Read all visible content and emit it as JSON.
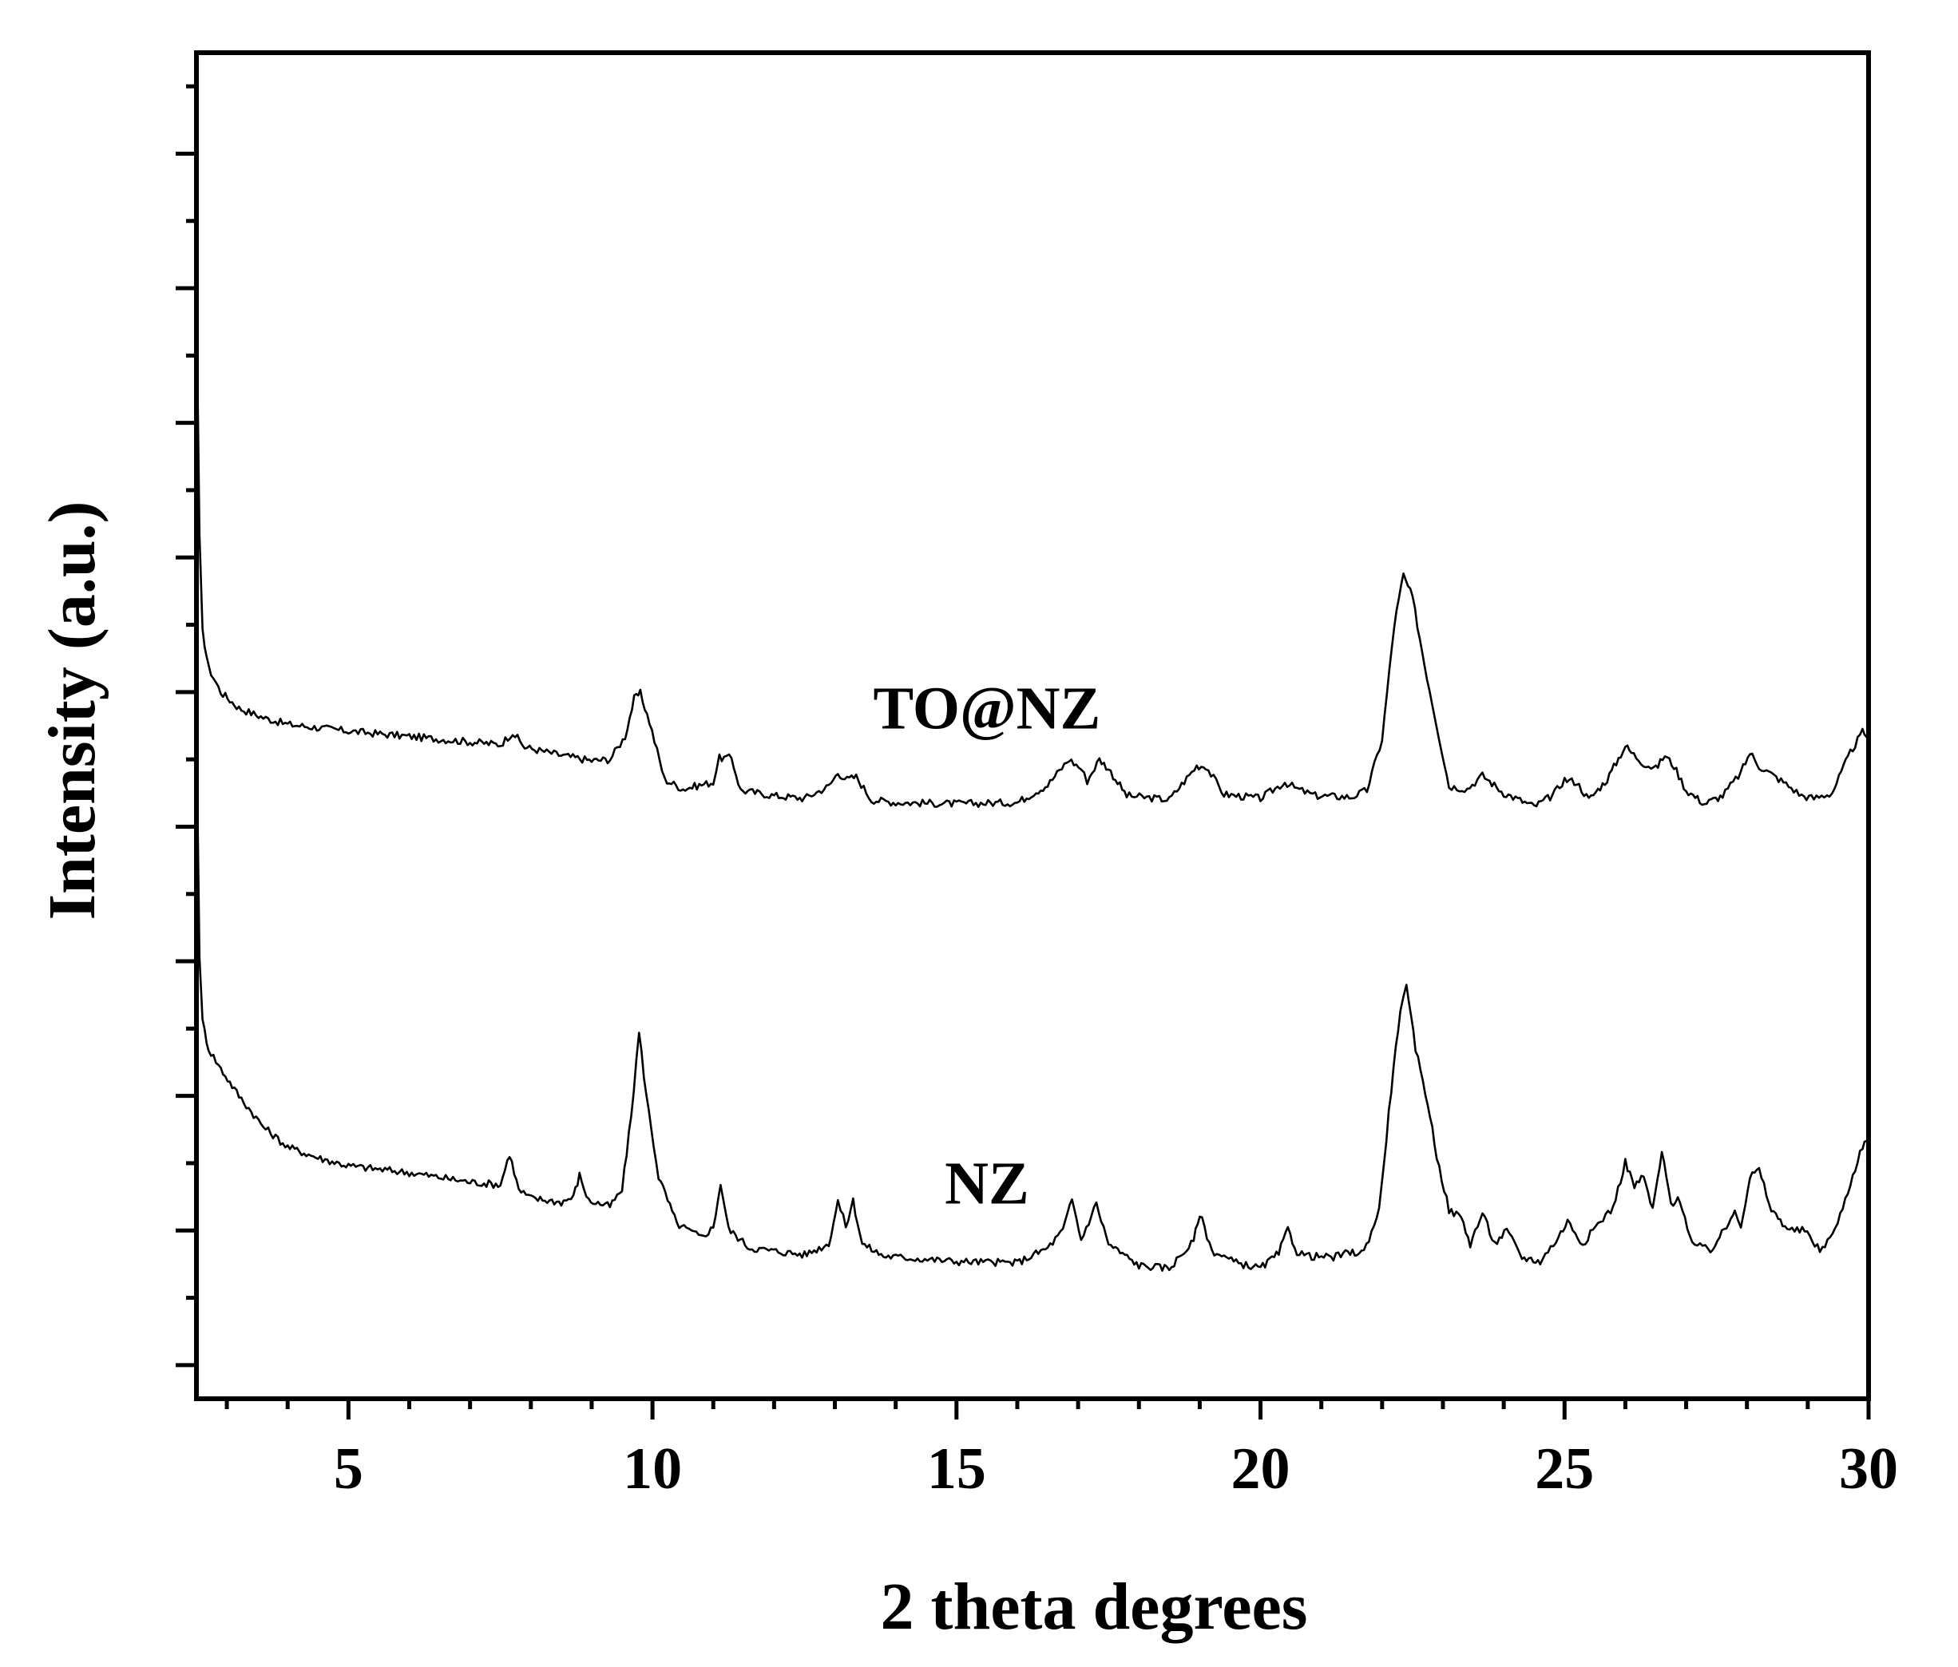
{
  "chart_data": {
    "type": "line",
    "xlabel": "2 theta degrees",
    "ylabel": "Intensity (a.u.)",
    "xlim": [
      2.5,
      30
    ],
    "ylim": [
      0,
      100
    ],
    "x_ticks": [
      "5",
      "10",
      "15",
      "20",
      "25",
      "30"
    ],
    "x_tick_values": [
      5,
      10,
      15,
      20,
      25,
      30
    ],
    "y_tick_labels_shown": false,
    "grid": false,
    "legend": "none",
    "series": [
      {
        "name": "TO@NZ",
        "label_position": [
          15.5,
          49.8
        ],
        "points": [
          [
            2.5,
            82
          ],
          [
            2.55,
            64
          ],
          [
            2.6,
            57
          ],
          [
            2.7,
            54.3
          ],
          [
            2.9,
            52.5
          ],
          [
            3.2,
            51.3
          ],
          [
            3.6,
            50.6
          ],
          [
            4.0,
            50.1
          ],
          [
            5.0,
            49.6
          ],
          [
            6.0,
            49.2
          ],
          [
            7.0,
            48.8
          ],
          [
            7.5,
            48.6
          ],
          [
            7.7,
            49.5
          ],
          [
            7.9,
            48.4
          ],
          [
            8.5,
            47.8
          ],
          [
            9.0,
            47.4
          ],
          [
            9.3,
            47.5
          ],
          [
            9.55,
            49.2
          ],
          [
            9.7,
            52.0
          ],
          [
            9.8,
            52.4
          ],
          [
            9.95,
            50.3
          ],
          [
            10.2,
            46.0
          ],
          [
            10.5,
            45.3
          ],
          [
            11.0,
            45.8
          ],
          [
            11.1,
            47.6
          ],
          [
            11.3,
            47.6
          ],
          [
            11.45,
            45.2
          ],
          [
            12.0,
            44.8
          ],
          [
            12.5,
            44.6
          ],
          [
            12.9,
            45.5
          ],
          [
            13.05,
            46.5
          ],
          [
            13.2,
            46.0
          ],
          [
            13.35,
            46.2
          ],
          [
            13.6,
            44.5
          ],
          [
            14.0,
            44.3
          ],
          [
            15.0,
            44.2
          ],
          [
            16.0,
            44.3
          ],
          [
            16.5,
            45.6
          ],
          [
            16.85,
            47.5
          ],
          [
            17.05,
            46.8
          ],
          [
            17.15,
            45.9
          ],
          [
            17.35,
            47.5
          ],
          [
            17.5,
            46.8
          ],
          [
            17.8,
            44.8
          ],
          [
            18.5,
            44.5
          ],
          [
            18.95,
            47.0
          ],
          [
            19.1,
            47.0
          ],
          [
            19.4,
            44.9
          ],
          [
            20.0,
            44.6
          ],
          [
            20.4,
            45.8
          ],
          [
            20.6,
            45.3
          ],
          [
            20.9,
            44.8
          ],
          [
            21.5,
            44.7
          ],
          [
            21.75,
            45.2
          ],
          [
            22.0,
            49.0
          ],
          [
            22.2,
            57.5
          ],
          [
            22.35,
            61.2
          ],
          [
            22.5,
            59.5
          ],
          [
            22.7,
            54.5
          ],
          [
            22.9,
            50.0
          ],
          [
            23.1,
            45.5
          ],
          [
            23.4,
            45.3
          ],
          [
            23.65,
            46.3
          ],
          [
            24.0,
            45.0
          ],
          [
            24.5,
            44.0
          ],
          [
            24.8,
            44.8
          ],
          [
            25.0,
            46.0
          ],
          [
            25.2,
            45.8
          ],
          [
            25.4,
            44.5
          ],
          [
            25.7,
            46.0
          ],
          [
            26.0,
            48.5
          ],
          [
            26.1,
            48.0
          ],
          [
            26.3,
            47.2
          ],
          [
            26.5,
            46.8
          ],
          [
            26.65,
            47.8
          ],
          [
            26.8,
            47.0
          ],
          [
            27.0,
            45.2
          ],
          [
            27.3,
            44.2
          ],
          [
            27.6,
            44.8
          ],
          [
            27.9,
            46.5
          ],
          [
            28.05,
            48.0
          ],
          [
            28.2,
            47.0
          ],
          [
            28.6,
            45.8
          ],
          [
            28.9,
            44.8
          ],
          [
            29.1,
            44.6
          ],
          [
            29.4,
            45.0
          ],
          [
            29.7,
            48.0
          ],
          [
            29.9,
            49.5
          ],
          [
            30.0,
            49.2
          ]
        ]
      },
      {
        "name": "NZ",
        "label_position": [
          15.5,
          14.5
        ],
        "points": [
          [
            2.5,
            50
          ],
          [
            2.55,
            33
          ],
          [
            2.6,
            28
          ],
          [
            2.7,
            26
          ],
          [
            2.9,
            24.5
          ],
          [
            3.2,
            22.5
          ],
          [
            3.6,
            20.2
          ],
          [
            4.0,
            18.7
          ],
          [
            4.5,
            17.9
          ],
          [
            5.0,
            17.3
          ],
          [
            6.0,
            16.8
          ],
          [
            7.0,
            16.1
          ],
          [
            7.5,
            15.9
          ],
          [
            7.65,
            18.2
          ],
          [
            7.8,
            15.5
          ],
          [
            8.0,
            14.9
          ],
          [
            8.5,
            14.6
          ],
          [
            8.7,
            15.0
          ],
          [
            8.8,
            16.6
          ],
          [
            8.95,
            14.7
          ],
          [
            9.3,
            14.3
          ],
          [
            9.5,
            15.5
          ],
          [
            9.65,
            21.0
          ],
          [
            9.78,
            27.2
          ],
          [
            9.9,
            22.5
          ],
          [
            10.1,
            16.5
          ],
          [
            10.4,
            13.0
          ],
          [
            10.8,
            12.0
          ],
          [
            11.0,
            12.7
          ],
          [
            11.12,
            16.0
          ],
          [
            11.25,
            12.6
          ],
          [
            11.6,
            11.2
          ],
          [
            12.5,
            10.7
          ],
          [
            12.9,
            11.5
          ],
          [
            13.05,
            14.7
          ],
          [
            13.18,
            12.8
          ],
          [
            13.3,
            14.7
          ],
          [
            13.45,
            11.5
          ],
          [
            13.8,
            10.6
          ],
          [
            15.0,
            10.2
          ],
          [
            16.0,
            10.1
          ],
          [
            16.5,
            11.2
          ],
          [
            16.75,
            12.5
          ],
          [
            16.9,
            14.8
          ],
          [
            17.05,
            11.8
          ],
          [
            17.3,
            14.5
          ],
          [
            17.5,
            11.5
          ],
          [
            18.0,
            9.9
          ],
          [
            18.5,
            9.7
          ],
          [
            18.9,
            11.7
          ],
          [
            19.0,
            13.8
          ],
          [
            19.2,
            11.0
          ],
          [
            19.6,
            10.1
          ],
          [
            20.0,
            9.7
          ],
          [
            20.3,
            10.8
          ],
          [
            20.45,
            12.6
          ],
          [
            20.6,
            10.9
          ],
          [
            20.8,
            10.6
          ],
          [
            21.2,
            10.5
          ],
          [
            21.4,
            10.8
          ],
          [
            21.7,
            10.9
          ],
          [
            21.95,
            14.0
          ],
          [
            22.15,
            23.0
          ],
          [
            22.3,
            29.0
          ],
          [
            22.4,
            30.5
          ],
          [
            22.55,
            26.0
          ],
          [
            22.75,
            22.0
          ],
          [
            22.9,
            18.0
          ],
          [
            23.1,
            14.0
          ],
          [
            23.3,
            13.5
          ],
          [
            23.45,
            11.5
          ],
          [
            23.65,
            13.8
          ],
          [
            23.85,
            11.5
          ],
          [
            24.05,
            12.5
          ],
          [
            24.3,
            10.5
          ],
          [
            24.6,
            10.2
          ],
          [
            24.9,
            12.0
          ],
          [
            25.05,
            13.2
          ],
          [
            25.3,
            11.5
          ],
          [
            25.55,
            13.0
          ],
          [
            25.8,
            14.2
          ],
          [
            26.0,
            17.6
          ],
          [
            26.15,
            15.8
          ],
          [
            26.3,
            16.5
          ],
          [
            26.45,
            14.0
          ],
          [
            26.6,
            18.3
          ],
          [
            26.75,
            14.5
          ],
          [
            26.9,
            14.8
          ],
          [
            27.1,
            11.5
          ],
          [
            27.4,
            11.0
          ],
          [
            27.7,
            13.0
          ],
          [
            27.8,
            14.2
          ],
          [
            27.9,
            12.8
          ],
          [
            28.05,
            16.5
          ],
          [
            28.2,
            17.0
          ],
          [
            28.4,
            14.0
          ],
          [
            28.7,
            12.5
          ],
          [
            28.95,
            12.5
          ],
          [
            29.2,
            11.0
          ],
          [
            29.45,
            12.5
          ],
          [
            29.7,
            16.0
          ],
          [
            29.9,
            18.8
          ],
          [
            30.0,
            19.2
          ]
        ]
      }
    ]
  }
}
